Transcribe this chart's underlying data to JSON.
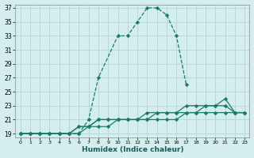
{
  "xlabel": "Humidex (Indice chaleur)",
  "background_color": "#d4eded",
  "grid_color": "#b8d8d8",
  "line_color": "#1a7a6a",
  "xlim": [
    -0.5,
    23.5
  ],
  "ylim": [
    18.5,
    37.5
  ],
  "xticks": [
    0,
    1,
    2,
    3,
    4,
    5,
    6,
    7,
    8,
    9,
    10,
    11,
    12,
    13,
    14,
    15,
    16,
    17,
    18,
    19,
    20,
    21,
    22,
    23
  ],
  "yticks": [
    19,
    21,
    23,
    25,
    27,
    29,
    31,
    33,
    35,
    37
  ],
  "series": [
    {
      "x": [
        0,
        1,
        2,
        3,
        4,
        5,
        6,
        7,
        8,
        10,
        11,
        12,
        13,
        14,
        15,
        16,
        17
      ],
      "y": [
        19,
        19,
        19,
        19,
        19,
        19,
        19,
        21,
        27,
        33,
        33,
        35,
        37,
        37,
        36,
        33,
        26
      ],
      "dashed": true
    },
    {
      "x": [
        0,
        1,
        2,
        3,
        4,
        5,
        6,
        7,
        8,
        9,
        10,
        11,
        12,
        13,
        14,
        15,
        16,
        17,
        18,
        19,
        20,
        21,
        22,
        23
      ],
      "y": [
        19,
        19,
        19,
        19,
        19,
        19,
        20,
        20,
        21,
        21,
        21,
        21,
        21,
        22,
        22,
        22,
        22,
        23,
        23,
        23,
        23,
        24,
        22,
        22
      ],
      "dashed": false
    },
    {
      "x": [
        0,
        1,
        2,
        3,
        4,
        5,
        6,
        7,
        8,
        9,
        10,
        11,
        12,
        13,
        14,
        15,
        16,
        17,
        18,
        19,
        20,
        21,
        22,
        23
      ],
      "y": [
        19,
        19,
        19,
        19,
        19,
        19,
        20,
        20,
        21,
        21,
        21,
        21,
        21,
        21,
        22,
        22,
        22,
        22,
        22,
        23,
        23,
        23,
        22,
        22
      ],
      "dashed": false
    },
    {
      "x": [
        0,
        1,
        2,
        3,
        4,
        5,
        6,
        7,
        8,
        9,
        10,
        11,
        12,
        13,
        14,
        15,
        16,
        17,
        18,
        19,
        20,
        21,
        22,
        23
      ],
      "y": [
        19,
        19,
        19,
        19,
        19,
        19,
        19,
        20,
        20,
        20,
        21,
        21,
        21,
        21,
        21,
        21,
        21,
        22,
        22,
        22,
        22,
        22,
        22,
        22
      ],
      "dashed": false
    }
  ]
}
